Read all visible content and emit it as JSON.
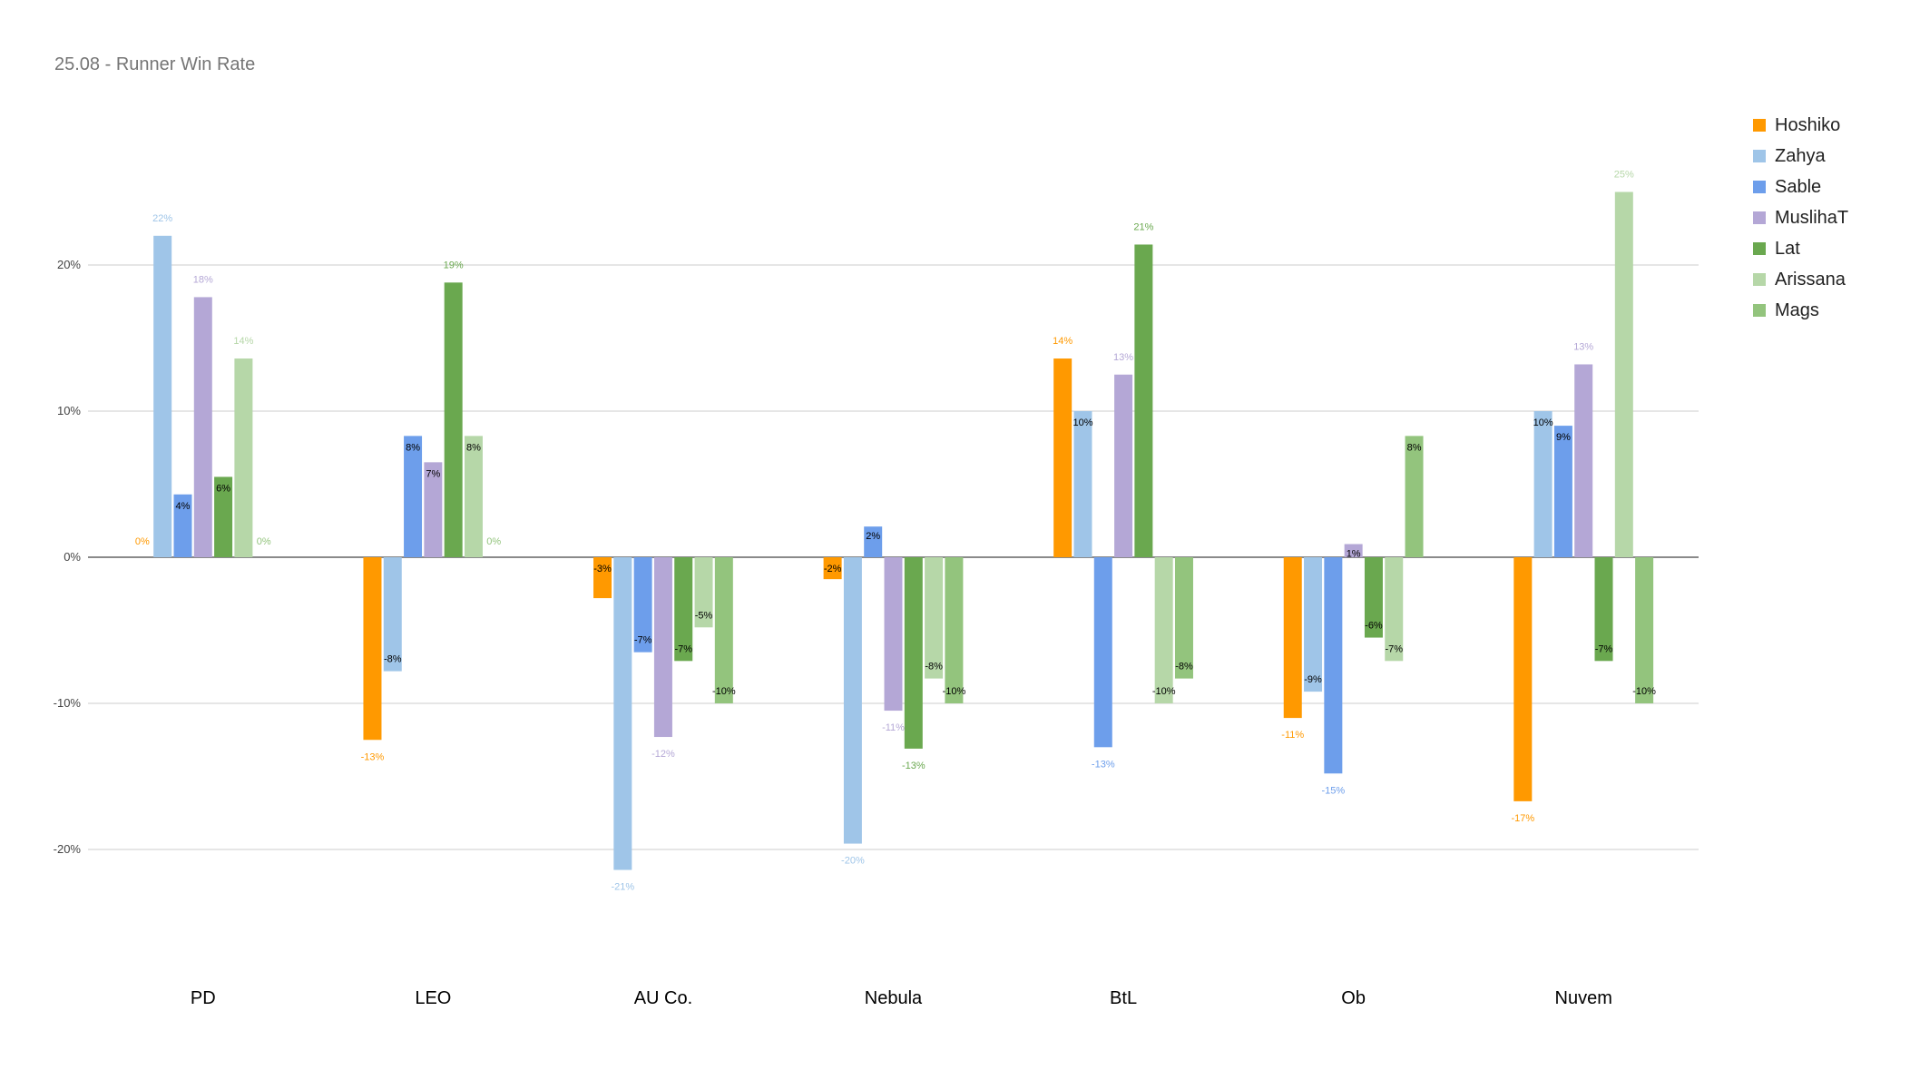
{
  "chart_data": {
    "type": "bar",
    "title": "25.08 - Runner Win Rate",
    "categories": [
      "PD",
      "LEO",
      "AU Co.",
      "Nebula",
      "BtL",
      "Ob",
      "Nuvem"
    ],
    "ylim": [
      -0.3,
      0.32
    ],
    "yticks": [
      -0.2,
      -0.1,
      0,
      0.1,
      0.2
    ],
    "ytick_labels": [
      "-20%",
      "-10%",
      "0%",
      "10%",
      "20%"
    ],
    "grid": true,
    "legend": "right",
    "xlabel": "",
    "ylabel": "",
    "series": [
      {
        "name": "Hoshiko",
        "color": "#ff9900",
        "label_color": "#ff9900",
        "values": [
          0,
          -0.125,
          -0.028,
          -0.015,
          0.136,
          -0.11,
          -0.167
        ],
        "labels": [
          "0%",
          "-13%",
          "-3%",
          "-2%",
          "14%",
          "-11%",
          "-17%"
        ]
      },
      {
        "name": "Zahya",
        "color": "#9fc5e8",
        "label_color": "#9fc5e8",
        "values": [
          0.22,
          -0.078,
          -0.214,
          -0.196,
          0.1,
          -0.092,
          0.1
        ],
        "labels": [
          "22%",
          "-8%",
          "-21%",
          "-20%",
          "10%",
          "-9%",
          "10%"
        ]
      },
      {
        "name": "Sable",
        "color": "#6d9eeb",
        "label_color": "#6d9eeb",
        "values": [
          0.043,
          0.083,
          -0.065,
          0.021,
          -0.13,
          -0.148,
          0.09
        ],
        "labels": [
          "4%",
          "8%",
          "-7%",
          "2%",
          "-13%",
          "-15%",
          "9%"
        ]
      },
      {
        "name": "MuslihaT",
        "color": "#b4a7d6",
        "label_color": "#b4a7d6",
        "values": [
          0.178,
          0.065,
          -0.123,
          -0.105,
          0.125,
          0.009,
          0.132
        ],
        "labels": [
          "18%",
          "7%",
          "-12%",
          "-11%",
          "13%",
          "1%",
          "13%"
        ]
      },
      {
        "name": "Lat",
        "color": "#6aa84f",
        "label_color": "#6aa84f",
        "values": [
          0.055,
          0.188,
          -0.071,
          -0.131,
          0.214,
          -0.055,
          -0.071
        ],
        "labels": [
          "6%",
          "19%",
          "-7%",
          "-13%",
          "21%",
          "-6%",
          "-7%"
        ]
      },
      {
        "name": "Arissana",
        "color": "#b6d7a8",
        "label_color": "#b6d7a8",
        "values": [
          0.136,
          0.083,
          -0.048,
          -0.083,
          -0.1,
          -0.071,
          0.25
        ],
        "labels": [
          "14%",
          "8%",
          "-5%",
          "-8%",
          "-10%",
          "-7%",
          "25%"
        ]
      },
      {
        "name": "Mags",
        "color": "#93c47d",
        "label_color": "#93c47d",
        "values": [
          0,
          0,
          -0.1,
          -0.1,
          -0.083,
          0.083,
          -0.1
        ],
        "labels": [
          "0%",
          "0%",
          "-10%",
          "-10%",
          "-8%",
          "8%",
          "-10%"
        ]
      }
    ]
  }
}
